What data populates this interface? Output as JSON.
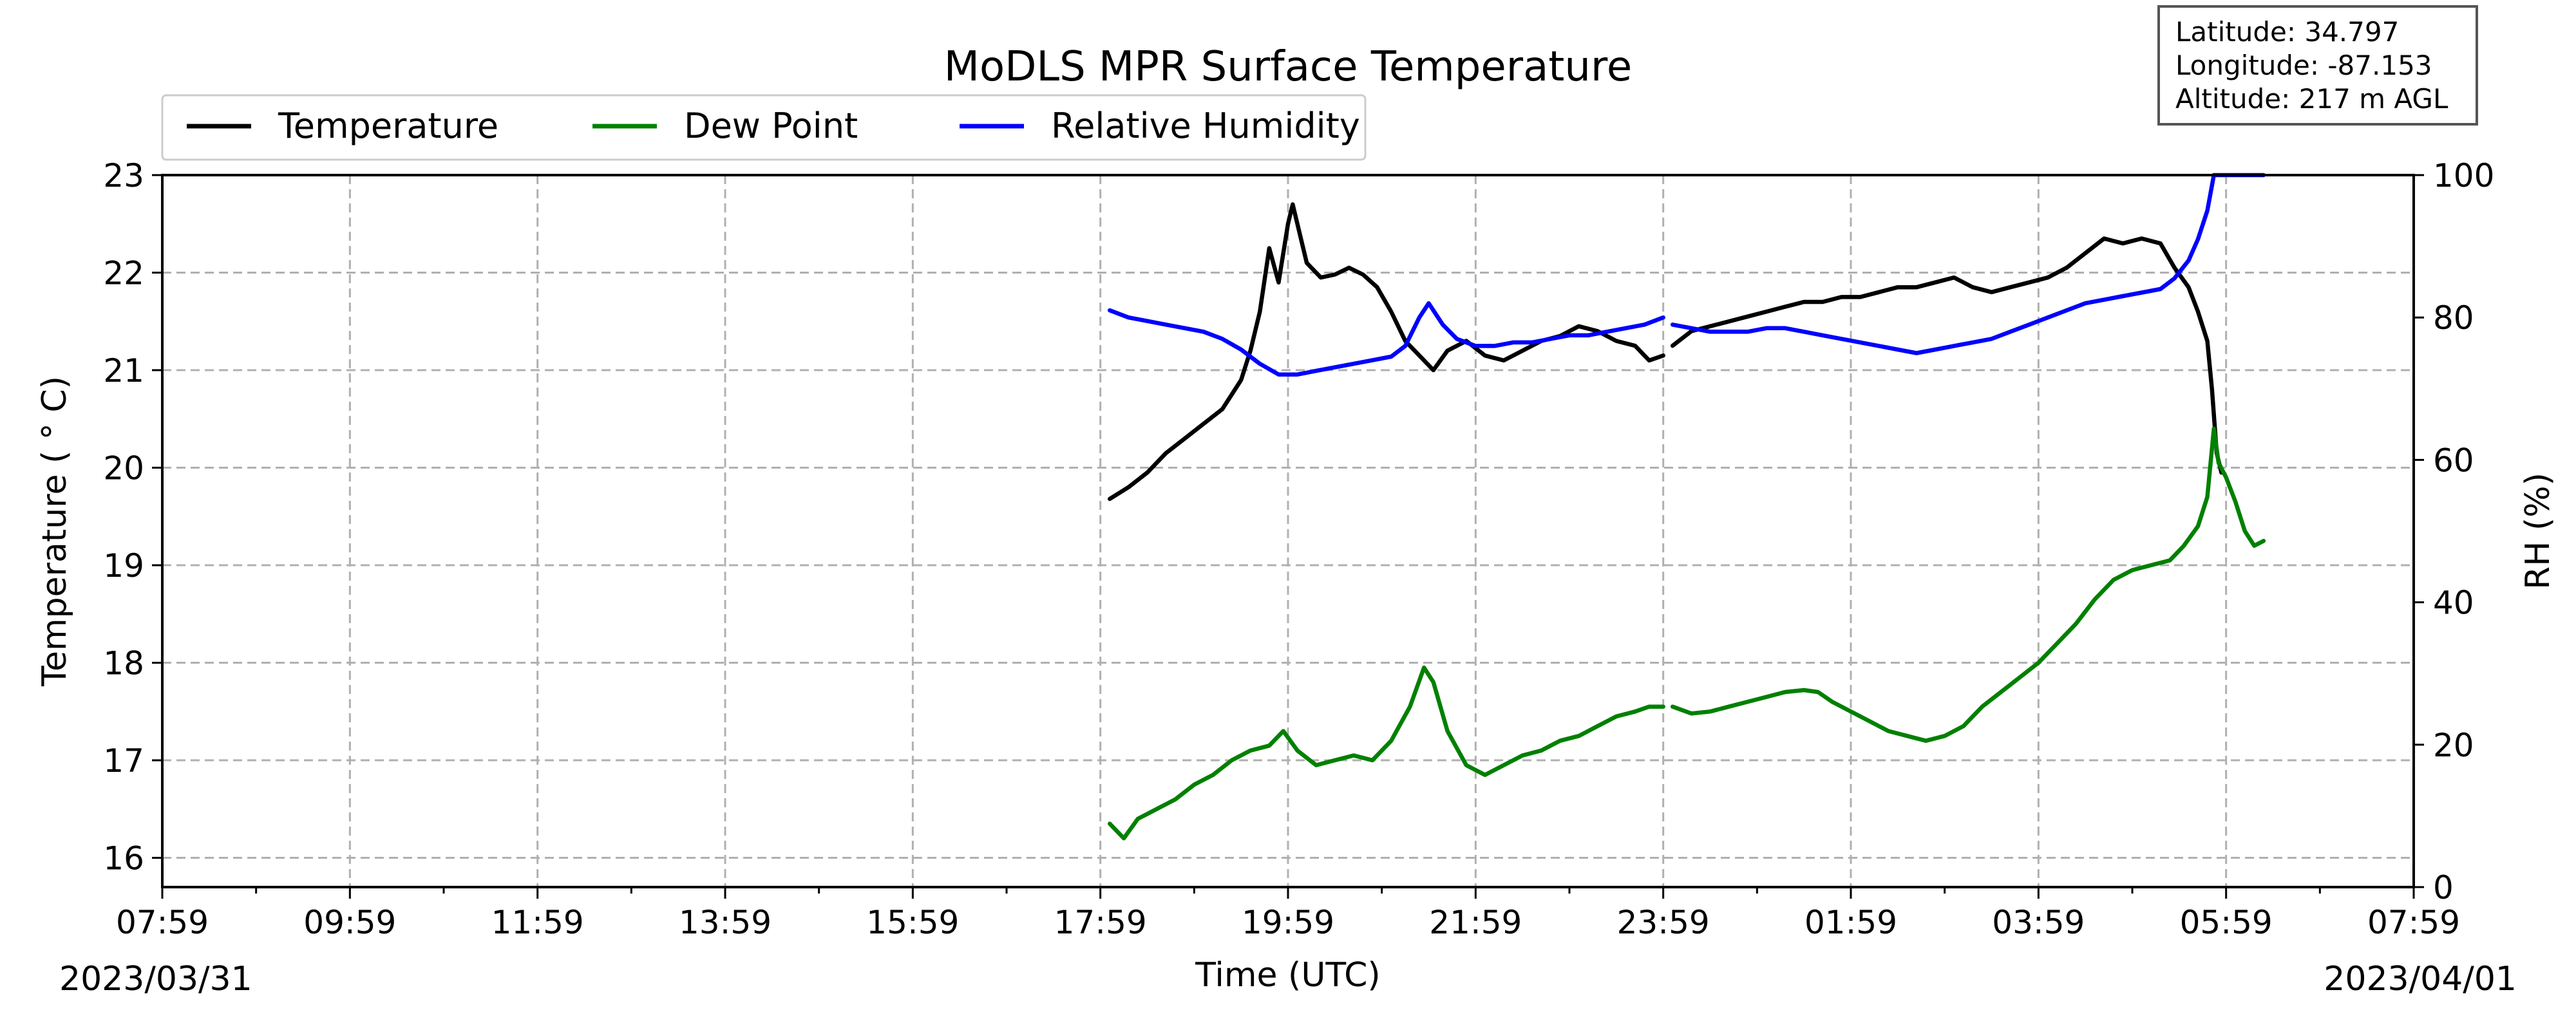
{
  "chart_data": {
    "type": "line",
    "title": "MoDLS MPR Surface Temperature",
    "xlabel": "Time (UTC)",
    "ylabel": "Temperature ($^\\circ$C)",
    "ylabel_display": "Temperature ( ° C)",
    "y2label": "RH (%)",
    "x_tick_labels": [
      "07:59",
      "09:59",
      "11:59",
      "13:59",
      "15:59",
      "17:59",
      "19:59",
      "21:59",
      "23:59",
      "01:59",
      "03:59",
      "05:59",
      "07:59"
    ],
    "x_range_hours": [
      0,
      24
    ],
    "date_start": "2023/03/31",
    "date_end": "2023/04/01",
    "ylim": [
      15.7,
      23.0
    ],
    "y_ticks": [
      16,
      17,
      18,
      19,
      20,
      21,
      22,
      23
    ],
    "y2lim": [
      0,
      100
    ],
    "y2_ticks": [
      0,
      20,
      40,
      60,
      80,
      100
    ],
    "grid": true,
    "legend_position": "top-left, above plot",
    "info_box": {
      "latitude": "Latitude: 34.797",
      "longitude": "Longitude: -87.153",
      "altitude": "Altitude: 217 m AGL"
    },
    "series": [
      {
        "name": "Temperature",
        "axis": "left",
        "color": "#000000",
        "segments": [
          [
            [
              10.1,
              19.68
            ],
            [
              10.3,
              19.8
            ],
            [
              10.5,
              19.95
            ],
            [
              10.7,
              20.15
            ],
            [
              10.9,
              20.3
            ],
            [
              11.1,
              20.45
            ],
            [
              11.3,
              20.6
            ],
            [
              11.5,
              20.9
            ],
            [
              11.6,
              21.2
            ],
            [
              11.7,
              21.6
            ],
            [
              11.8,
              22.25
            ],
            [
              11.9,
              21.9
            ],
            [
              12.0,
              22.5
            ],
            [
              12.05,
              22.7
            ],
            [
              12.2,
              22.1
            ],
            [
              12.35,
              21.95
            ],
            [
              12.5,
              21.98
            ],
            [
              12.65,
              22.05
            ],
            [
              12.8,
              21.98
            ],
            [
              12.95,
              21.85
            ],
            [
              13.1,
              21.6
            ],
            [
              13.25,
              21.3
            ],
            [
              13.4,
              21.15
            ],
            [
              13.55,
              21.0
            ],
            [
              13.7,
              21.2
            ],
            [
              13.9,
              21.3
            ],
            [
              14.1,
              21.15
            ],
            [
              14.3,
              21.1
            ],
            [
              14.5,
              21.2
            ],
            [
              14.7,
              21.3
            ],
            [
              14.9,
              21.35
            ],
            [
              15.1,
              21.45
            ],
            [
              15.3,
              21.4
            ],
            [
              15.5,
              21.3
            ],
            [
              15.7,
              21.25
            ],
            [
              15.85,
              21.1
            ],
            [
              16.0,
              21.15
            ]
          ],
          [
            [
              16.1,
              21.25
            ],
            [
              16.3,
              21.4
            ],
            [
              16.5,
              21.45
            ],
            [
              16.7,
              21.5
            ],
            [
              16.9,
              21.55
            ],
            [
              17.1,
              21.6
            ],
            [
              17.3,
              21.65
            ],
            [
              17.5,
              21.7
            ],
            [
              17.7,
              21.7
            ],
            [
              17.9,
              21.75
            ],
            [
              18.1,
              21.75
            ],
            [
              18.3,
              21.8
            ],
            [
              18.5,
              21.85
            ],
            [
              18.7,
              21.85
            ],
            [
              18.9,
              21.9
            ],
            [
              19.1,
              21.95
            ],
            [
              19.3,
              21.85
            ],
            [
              19.5,
              21.8
            ],
            [
              19.7,
              21.85
            ],
            [
              19.9,
              21.9
            ],
            [
              20.1,
              21.95
            ],
            [
              20.3,
              22.05
            ],
            [
              20.5,
              22.2
            ],
            [
              20.7,
              22.35
            ],
            [
              20.9,
              22.3
            ],
            [
              21.1,
              22.35
            ],
            [
              21.3,
              22.3
            ],
            [
              21.45,
              22.05
            ],
            [
              21.6,
              21.85
            ],
            [
              21.7,
              21.6
            ],
            [
              21.8,
              21.3
            ],
            [
              21.85,
              20.8
            ],
            [
              21.9,
              20.15
            ],
            [
              21.95,
              19.95
            ]
          ]
        ]
      },
      {
        "name": "Dew Point",
        "axis": "left",
        "color": "#008000",
        "segments": [
          [
            [
              10.1,
              16.35
            ],
            [
              10.25,
              16.2
            ],
            [
              10.4,
              16.4
            ],
            [
              10.6,
              16.5
            ],
            [
              10.8,
              16.6
            ],
            [
              11.0,
              16.75
            ],
            [
              11.2,
              16.85
            ],
            [
              11.4,
              17.0
            ],
            [
              11.6,
              17.1
            ],
            [
              11.8,
              17.15
            ],
            [
              11.95,
              17.3
            ],
            [
              12.1,
              17.1
            ],
            [
              12.3,
              16.95
            ],
            [
              12.5,
              17.0
            ],
            [
              12.7,
              17.05
            ],
            [
              12.9,
              17.0
            ],
            [
              13.1,
              17.2
            ],
            [
              13.3,
              17.55
            ],
            [
              13.45,
              17.95
            ],
            [
              13.55,
              17.8
            ],
            [
              13.7,
              17.3
            ],
            [
              13.9,
              16.95
            ],
            [
              14.1,
              16.85
            ],
            [
              14.3,
              16.95
            ],
            [
              14.5,
              17.05
            ],
            [
              14.7,
              17.1
            ],
            [
              14.9,
              17.2
            ],
            [
              15.1,
              17.25
            ],
            [
              15.3,
              17.35
            ],
            [
              15.5,
              17.45
            ],
            [
              15.7,
              17.5
            ],
            [
              15.85,
              17.55
            ],
            [
              16.0,
              17.55
            ]
          ],
          [
            [
              16.1,
              17.55
            ],
            [
              16.3,
              17.48
            ],
            [
              16.5,
              17.5
            ],
            [
              16.7,
              17.55
            ],
            [
              16.9,
              17.6
            ],
            [
              17.1,
              17.65
            ],
            [
              17.3,
              17.7
            ],
            [
              17.5,
              17.72
            ],
            [
              17.65,
              17.7
            ],
            [
              17.8,
              17.6
            ],
            [
              18.0,
              17.5
            ],
            [
              18.2,
              17.4
            ],
            [
              18.4,
              17.3
            ],
            [
              18.6,
              17.25
            ],
            [
              18.8,
              17.2
            ],
            [
              19.0,
              17.25
            ],
            [
              19.2,
              17.35
            ],
            [
              19.4,
              17.55
            ],
            [
              19.6,
              17.7
            ],
            [
              19.8,
              17.85
            ],
            [
              20.0,
              18.0
            ],
            [
              20.2,
              18.2
            ],
            [
              20.4,
              18.4
            ],
            [
              20.6,
              18.65
            ],
            [
              20.8,
              18.85
            ],
            [
              21.0,
              18.95
            ],
            [
              21.2,
              19.0
            ],
            [
              21.4,
              19.05
            ],
            [
              21.55,
              19.2
            ],
            [
              21.7,
              19.4
            ],
            [
              21.8,
              19.7
            ],
            [
              21.87,
              20.4
            ],
            [
              21.92,
              20.05
            ],
            [
              22.0,
              19.9
            ],
            [
              22.1,
              19.65
            ],
            [
              22.2,
              19.35
            ],
            [
              22.3,
              19.2
            ],
            [
              22.4,
              19.25
            ]
          ]
        ]
      },
      {
        "name": "Relative Humidity",
        "axis": "right",
        "color": "#0000ff",
        "segments": [
          [
            [
              10.1,
              81
            ],
            [
              10.3,
              80
            ],
            [
              10.5,
              79.5
            ],
            [
              10.7,
              79
            ],
            [
              10.9,
              78.5
            ],
            [
              11.1,
              78
            ],
            [
              11.3,
              77
            ],
            [
              11.5,
              75.5
            ],
            [
              11.7,
              73.5
            ],
            [
              11.9,
              72
            ],
            [
              12.1,
              72
            ],
            [
              12.3,
              72.5
            ],
            [
              12.5,
              73
            ],
            [
              12.7,
              73.5
            ],
            [
              12.9,
              74
            ],
            [
              13.1,
              74.5
            ],
            [
              13.25,
              76
            ],
            [
              13.4,
              80
            ],
            [
              13.5,
              82
            ],
            [
              13.65,
              79
            ],
            [
              13.8,
              77
            ],
            [
              14.0,
              76
            ],
            [
              14.2,
              76
            ],
            [
              14.4,
              76.5
            ],
            [
              14.6,
              76.5
            ],
            [
              14.8,
              77
            ],
            [
              15.0,
              77.5
            ],
            [
              15.2,
              77.5
            ],
            [
              15.4,
              78
            ],
            [
              15.6,
              78.5
            ],
            [
              15.8,
              79
            ],
            [
              16.0,
              80
            ]
          ],
          [
            [
              16.1,
              79
            ],
            [
              16.3,
              78.5
            ],
            [
              16.5,
              78
            ],
            [
              16.7,
              78
            ],
            [
              16.9,
              78
            ],
            [
              17.1,
              78.5
            ],
            [
              17.3,
              78.5
            ],
            [
              17.5,
              78
            ],
            [
              17.7,
              77.5
            ],
            [
              17.9,
              77
            ],
            [
              18.1,
              76.5
            ],
            [
              18.3,
              76
            ],
            [
              18.5,
              75.5
            ],
            [
              18.7,
              75
            ],
            [
              18.9,
              75.5
            ],
            [
              19.1,
              76
            ],
            [
              19.3,
              76.5
            ],
            [
              19.5,
              77
            ],
            [
              19.7,
              78
            ],
            [
              19.9,
              79
            ],
            [
              20.1,
              80
            ],
            [
              20.3,
              81
            ],
            [
              20.5,
              82
            ],
            [
              20.7,
              82.5
            ],
            [
              20.9,
              83
            ],
            [
              21.1,
              83.5
            ],
            [
              21.3,
              84
            ],
            [
              21.45,
              85.5
            ],
            [
              21.6,
              88
            ],
            [
              21.7,
              91
            ],
            [
              21.8,
              95
            ],
            [
              21.87,
              100
            ],
            [
              22.4,
              100
            ]
          ]
        ]
      }
    ]
  }
}
